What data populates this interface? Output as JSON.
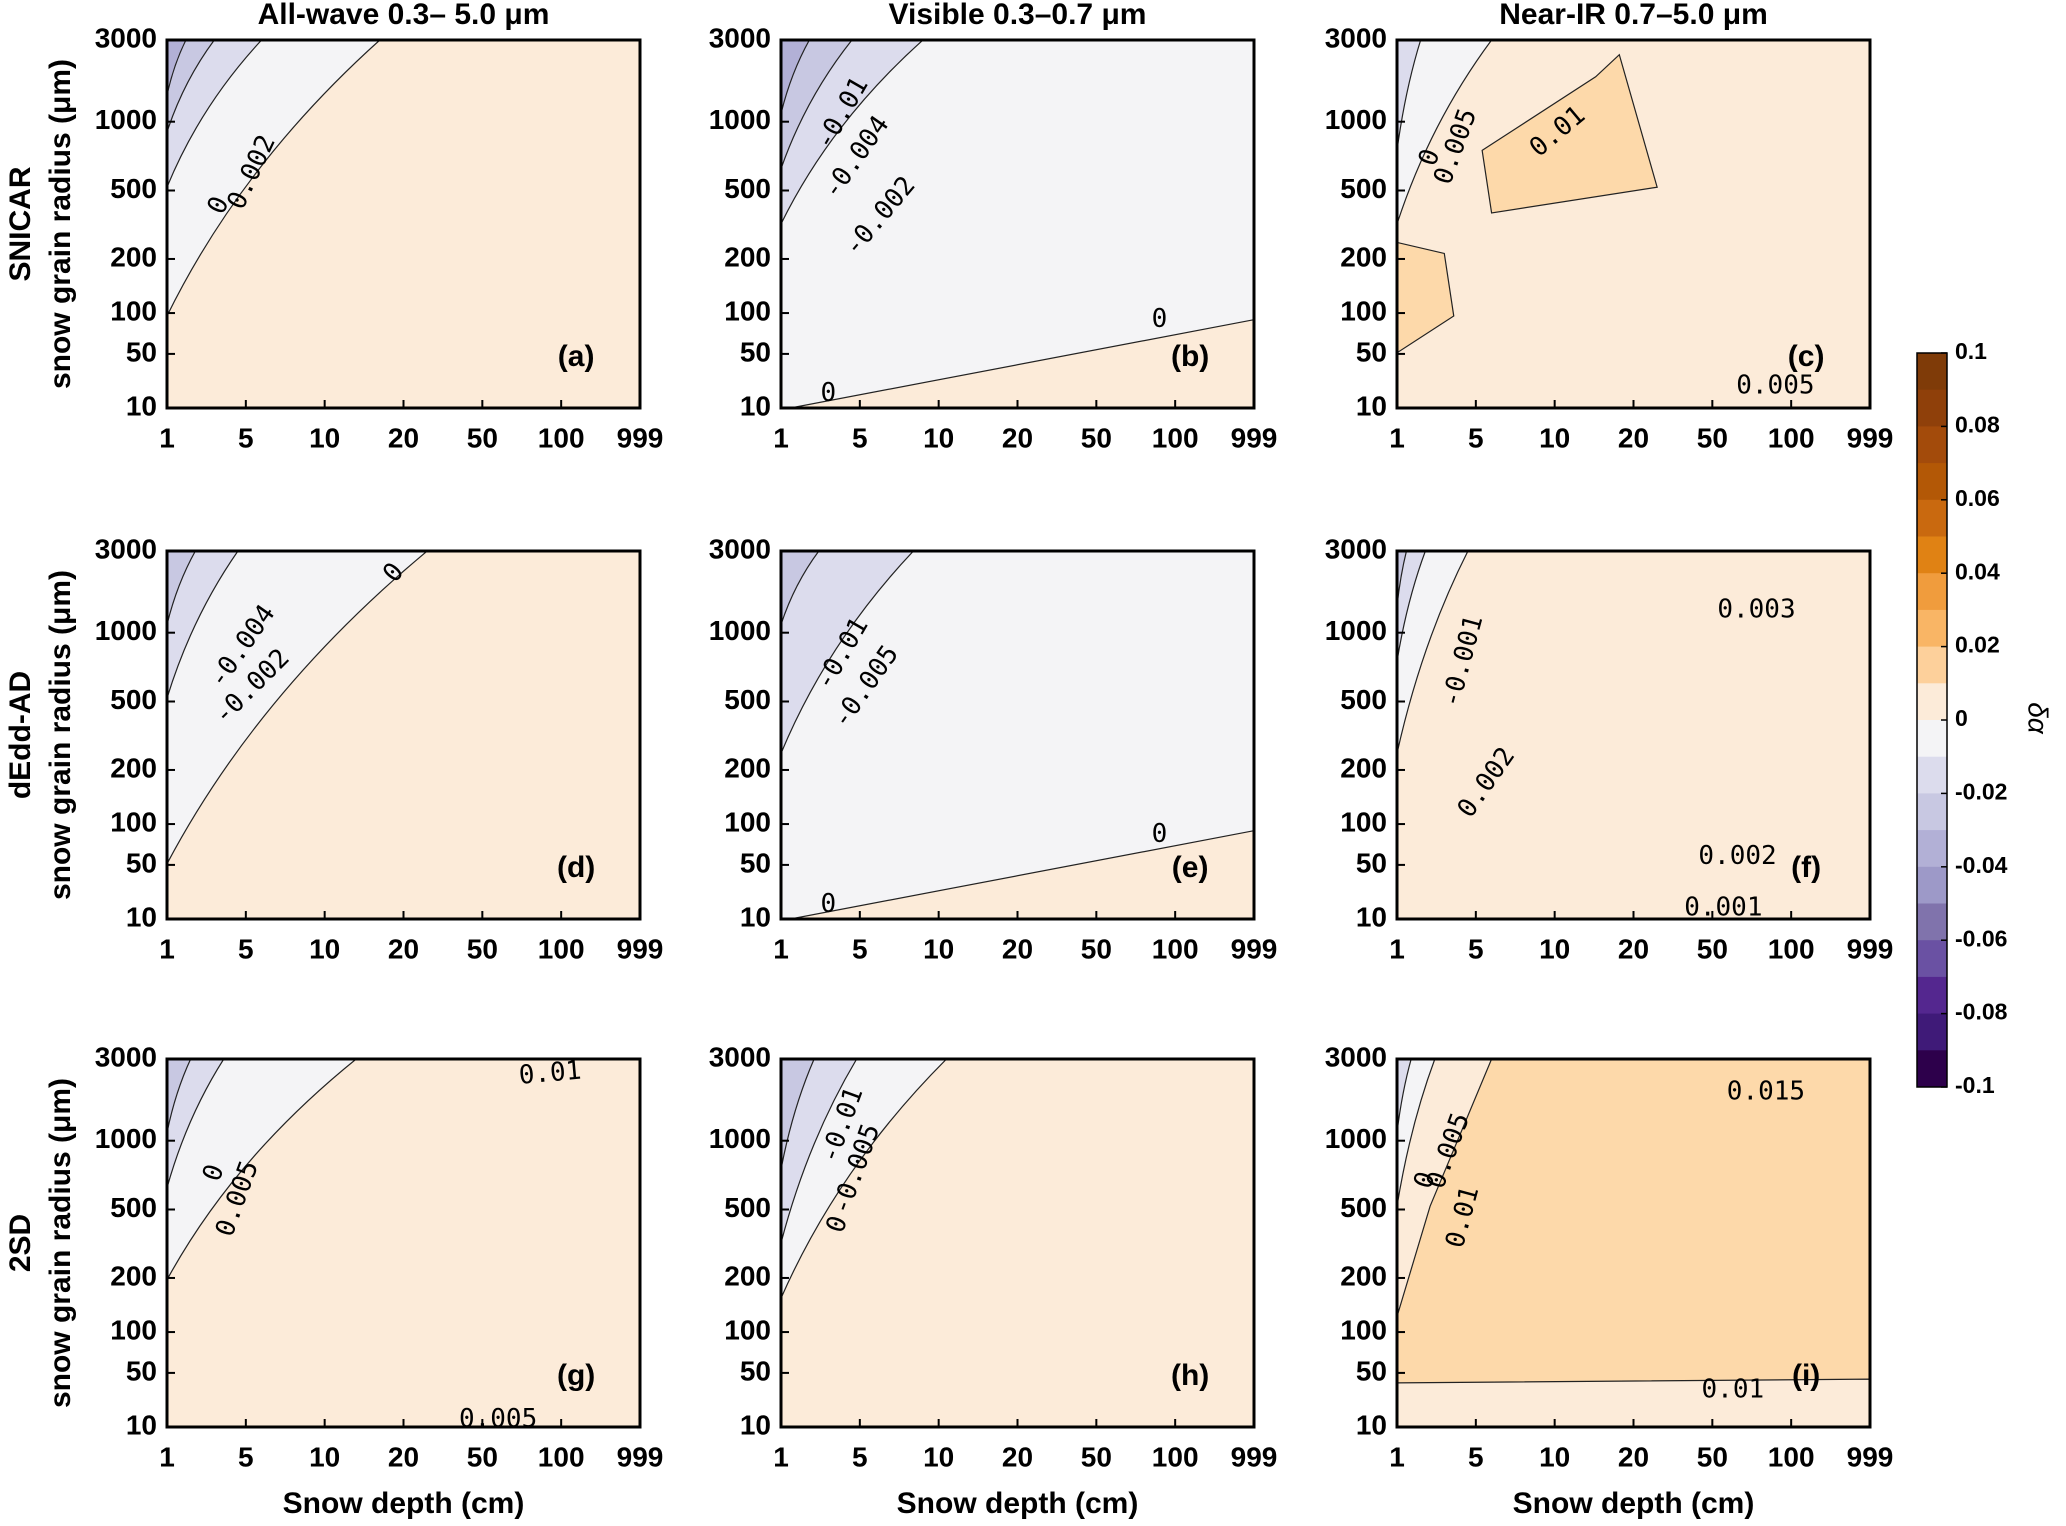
{
  "chart_data": [
    {
      "type": "contour",
      "title": "All-wave  0.3– 5.0 μm",
      "row_label": "SNICAR",
      "ylabel": "snow grain radius (μm)",
      "panel_label": "(a)",
      "color": "#fcebd9",
      "x_categories": [
        1,
        5,
        10,
        20,
        50,
        100,
        999
      ],
      "y_categories": [
        10,
        50,
        100,
        200,
        500,
        1000,
        3000
      ],
      "contour_labels": [
        0.002,
        0
      ]
    },
    {
      "type": "contour",
      "title": "Visible 0.3–0.7 μm",
      "panel_label": "(b)",
      "color": "#fcebd9",
      "x_categories": [
        1,
        5,
        10,
        20,
        50,
        100,
        999
      ],
      "y_categories": [
        10,
        50,
        100,
        200,
        500,
        1000,
        3000
      ],
      "contour_labels": [
        0,
        0,
        -0.002,
        -0.004,
        -0.01
      ]
    },
    {
      "type": "contour",
      "title": "Near-IR 0.7–5.0 μm",
      "panel_label": "(c)",
      "color": "#fcebd9",
      "x_categories": [
        1,
        5,
        10,
        20,
        50,
        100,
        999
      ],
      "y_categories": [
        10,
        50,
        100,
        200,
        500,
        1000,
        3000
      ],
      "contour_labels": [
        0.005,
        0.01,
        0.005,
        0
      ]
    },
    {
      "type": "contour",
      "row_label": "dEdd-AD",
      "ylabel": "snow grain radius (μm)",
      "panel_label": "(d)",
      "color": "#fcebd9",
      "x_categories": [
        1,
        5,
        10,
        20,
        50,
        100,
        999
      ],
      "y_categories": [
        10,
        50,
        100,
        200,
        500,
        1000,
        3000
      ],
      "contour_labels": [
        0,
        -0.004,
        -0.002
      ]
    },
    {
      "type": "contour",
      "panel_label": "(e)",
      "color": "#fcebd9",
      "x_categories": [
        1,
        5,
        10,
        20,
        50,
        100,
        999
      ],
      "y_categories": [
        10,
        50,
        100,
        200,
        500,
        1000,
        3000
      ],
      "contour_labels": [
        0,
        0,
        -0.01,
        -0.005
      ]
    },
    {
      "type": "contour",
      "panel_label": "(f)",
      "color": "#fcebd9",
      "x_categories": [
        1,
        5,
        10,
        20,
        50,
        100,
        999
      ],
      "y_categories": [
        10,
        50,
        100,
        200,
        500,
        1000,
        3000
      ],
      "contour_labels": [
        0.003,
        0.002,
        0.001,
        -0.001,
        0.002
      ]
    },
    {
      "type": "contour",
      "row_label": "2SD",
      "ylabel": "snow grain radius (μm)",
      "xlabel": "Snow depth (cm)",
      "panel_label": "(g)",
      "color": "#fcebd9",
      "x_categories": [
        1,
        5,
        10,
        20,
        50,
        100,
        999
      ],
      "y_categories": [
        10,
        50,
        100,
        200,
        500,
        1000,
        3000
      ],
      "contour_labels": [
        0.01,
        0.005,
        0.005,
        0
      ]
    },
    {
      "type": "contour",
      "xlabel": "Snow depth (cm)",
      "panel_label": "(h)",
      "color": "#fcebd9",
      "x_categories": [
        1,
        5,
        10,
        20,
        50,
        100,
        999
      ],
      "y_categories": [
        10,
        50,
        100,
        200,
        500,
        1000,
        3000
      ],
      "contour_labels": [
        -0.01,
        -0.005,
        0
      ]
    },
    {
      "type": "contour",
      "xlabel": "Snow depth (cm)",
      "panel_label": "(i)",
      "color": "#fdd9aa",
      "x_categories": [
        1,
        5,
        10,
        20,
        50,
        100,
        999
      ],
      "y_categories": [
        10,
        50,
        100,
        200,
        500,
        1000,
        3000
      ],
      "contour_labels": [
        0.015,
        0.01,
        0.005,
        0.01,
        0
      ]
    }
  ],
  "colorbar": {
    "label": "δα",
    "lim": [
      -0.1,
      0.1
    ],
    "ticks": [
      0.1,
      0.08,
      0.06,
      0.04,
      0.02,
      0,
      -0.02,
      -0.04,
      -0.06,
      -0.08,
      -0.1
    ],
    "colors": [
      "#7f3b08",
      "#8f400a",
      "#a34b0b",
      "#b35806",
      "#c9690f",
      "#e08214",
      "#f09c3d",
      "#f9b565",
      "#fdd09b",
      "#fcebd9",
      "#f4f4f6",
      "#dcdced",
      "#c8c8e2",
      "#b2b0d6",
      "#9d99c8",
      "#8073ac",
      "#6a51a3",
      "#54278f",
      "#3f1a78",
      "#2d004b"
    ]
  }
}
